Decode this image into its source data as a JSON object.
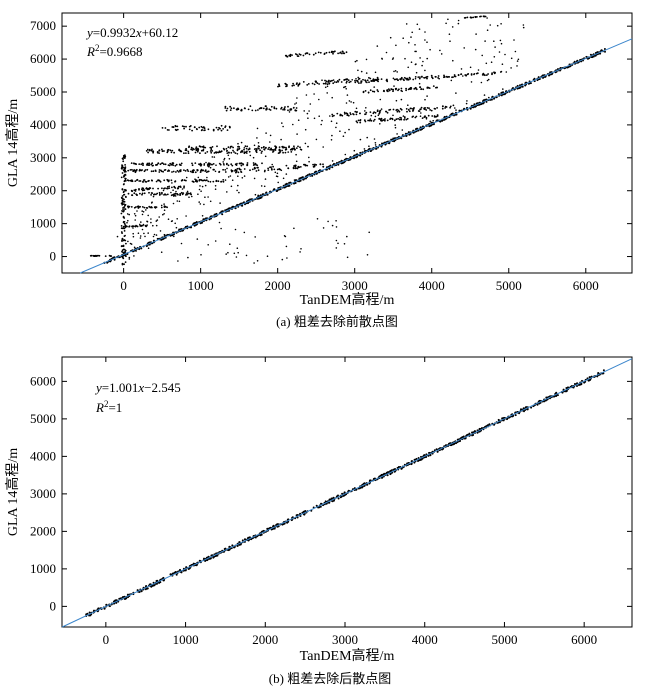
{
  "chart_data": [
    {
      "type": "scatter",
      "panel": "a",
      "caption": "(a) 粗差去除前散点图",
      "xlabel": "TanDEM高程/m",
      "ylabel": "GLA 14高程/m",
      "xlim": [
        -800,
        6600
      ],
      "ylim": [
        -500,
        7400
      ],
      "xticks": [
        0,
        1000,
        2000,
        3000,
        4000,
        5000,
        6000
      ],
      "yticks": [
        0,
        1000,
        2000,
        3000,
        4000,
        5000,
        6000,
        7000
      ],
      "annotation": {
        "equation_lhs": "y",
        "equation_rhs": "=0.9932",
        "equation_var": "x",
        "equation_tail": "+60.12",
        "r2_label": "R",
        "r2_sup": "2",
        "r2_value": "=0.9668"
      },
      "fit": {
        "slope": 0.9932,
        "intercept": 60.12
      },
      "line_color": "#3b86cc",
      "point_color": "#000000",
      "grid": false
    },
    {
      "type": "scatter",
      "panel": "b",
      "caption": "(b) 粗差去除后散点图",
      "xlabel": "TanDEM高程/m",
      "ylabel": "GLA 14高程/m",
      "xlim": [
        -550,
        6600
      ],
      "ylim": [
        -550,
        6650
      ],
      "xticks": [
        0,
        1000,
        2000,
        3000,
        4000,
        5000,
        6000
      ],
      "yticks": [
        0,
        1000,
        2000,
        3000,
        4000,
        5000,
        6000
      ],
      "annotation": {
        "equation_lhs": "y",
        "equation_rhs": "=1.001",
        "equation_var": "x",
        "equation_tail": "−2.545",
        "r2_label": "R",
        "r2_sup": "2",
        "r2_value": "=1"
      },
      "fit": {
        "slope": 1.001,
        "intercept": -2.545
      },
      "line_color": "#3b86cc",
      "point_color": "#000000",
      "grid": false
    }
  ]
}
